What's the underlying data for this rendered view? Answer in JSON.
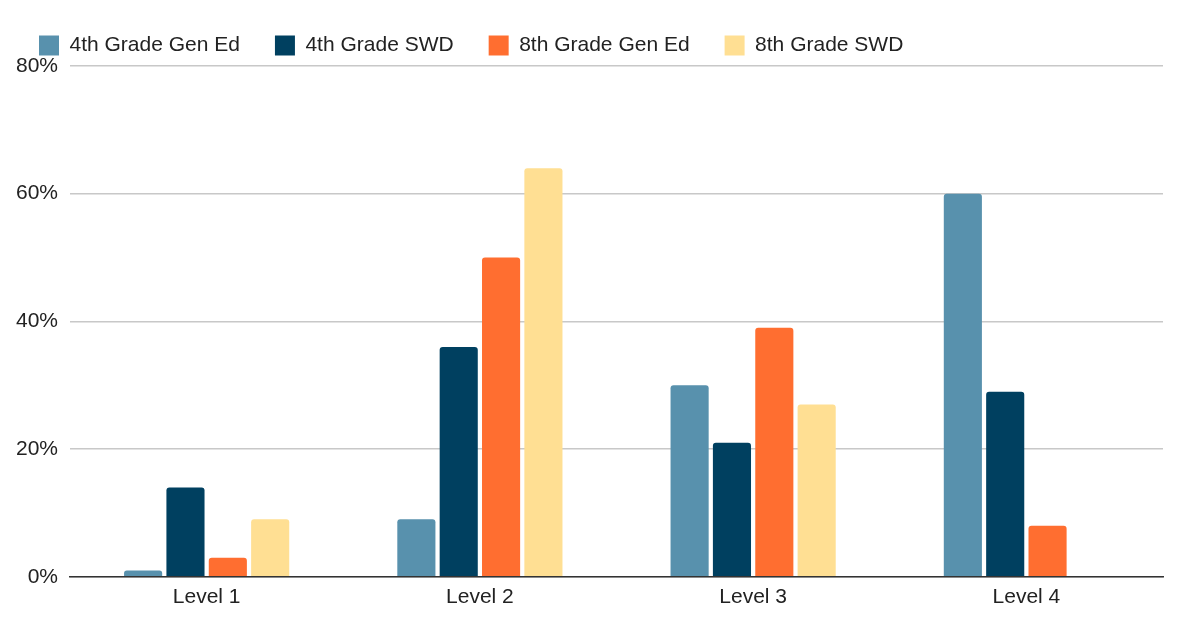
{
  "chart_data": {
    "type": "bar",
    "categories": [
      "Level 1",
      "Level 2",
      "Level 3",
      "Level 4"
    ],
    "series": [
      {
        "name": "4th Grade Gen Ed",
        "color": "#5891ad",
        "values": [
          1,
          9,
          30,
          60
        ]
      },
      {
        "name": "4th Grade SWD",
        "color": "#004060",
        "values": [
          14,
          36,
          21,
          29
        ]
      },
      {
        "name": "8th Grade Gen Ed",
        "color": "#ff6e30",
        "values": [
          3,
          50,
          39,
          8
        ]
      },
      {
        "name": "8th Grade SWD",
        "color": "#ffdf93",
        "values": [
          9,
          64,
          27,
          0
        ]
      }
    ],
    "ylim": [
      0,
      80
    ],
    "yticks": [
      {
        "value": 0,
        "label": "0%"
      },
      {
        "value": 20,
        "label": "20%"
      },
      {
        "value": 40,
        "label": "40%"
      },
      {
        "value": 60,
        "label": "60%"
      },
      {
        "value": 80,
        "label": "80%"
      }
    ],
    "grid": "y",
    "legend": "top left"
  }
}
